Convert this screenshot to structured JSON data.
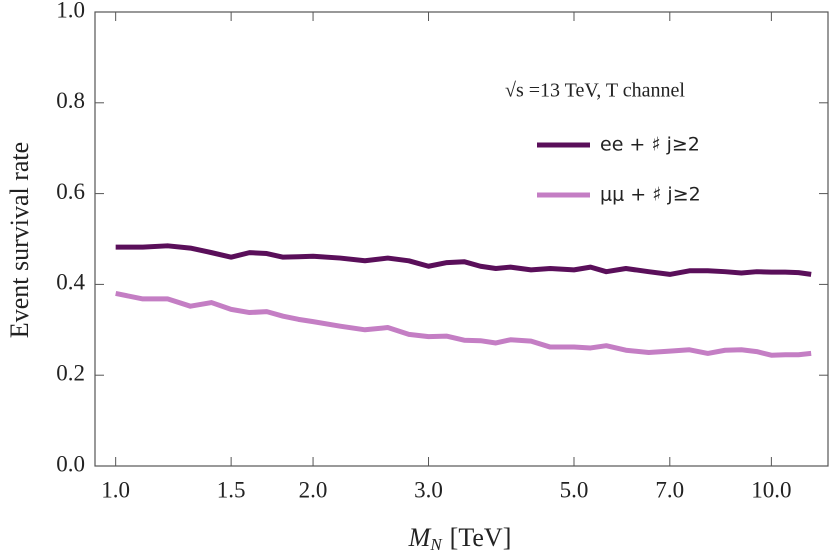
{
  "chart_data": {
    "type": "line",
    "ylabel": "Event survival rate",
    "xlabel": {
      "symbol": "M",
      "subscript": "N",
      "unit": "[TeV]"
    },
    "annotation": "√s =13 TeV, T channel",
    "x": [
      1.0,
      1.1,
      1.2,
      1.3,
      1.4,
      1.5,
      1.6,
      1.7,
      1.8,
      1.9,
      2.0,
      2.2,
      2.4,
      2.6,
      2.8,
      3.0,
      3.2,
      3.4,
      3.6,
      3.8,
      4.0,
      4.3,
      4.6,
      5.0,
      5.3,
      5.6,
      6.0,
      6.5,
      7.0,
      7.5,
      8.0,
      8.5,
      9.0,
      9.5,
      10.0,
      10.5,
      11.0,
      11.5
    ],
    "series": [
      {
        "name": "ee + ♯ j≥2",
        "color": "#5a0f5a",
        "values": [
          0.482,
          0.482,
          0.485,
          0.48,
          0.47,
          0.46,
          0.47,
          0.468,
          0.46,
          0.461,
          0.462,
          0.458,
          0.452,
          0.458,
          0.452,
          0.44,
          0.448,
          0.45,
          0.44,
          0.435,
          0.438,
          0.432,
          0.435,
          0.432,
          0.438,
          0.428,
          0.435,
          0.428,
          0.422,
          0.43,
          0.43,
          0.428,
          0.425,
          0.428,
          0.427,
          0.427,
          0.426,
          0.422
        ]
      },
      {
        "name": "μμ + ♯ j≥2",
        "color": "#c47ec4",
        "values": [
          0.38,
          0.368,
          0.368,
          0.352,
          0.36,
          0.345,
          0.338,
          0.34,
          0.33,
          0.323,
          0.318,
          0.308,
          0.3,
          0.305,
          0.29,
          0.285,
          0.286,
          0.277,
          0.276,
          0.271,
          0.278,
          0.275,
          0.262,
          0.262,
          0.26,
          0.265,
          0.255,
          0.25,
          0.253,
          0.256,
          0.248,
          0.255,
          0.256,
          0.252,
          0.244,
          0.245,
          0.245,
          0.248
        ]
      }
    ],
    "xscale": "log",
    "xlim": [
      0.93,
      12.2
    ],
    "xticks": [
      {
        "value": 1,
        "label": "1.0"
      },
      1.5,
      {
        "value": 2,
        "label": "2.0"
      },
      {
        "value": 3,
        "label": "3.0"
      },
      {
        "value": 5,
        "label": "5.0"
      },
      {
        "value": 7,
        "label": "7.0"
      },
      {
        "value": 10,
        "label": "10.0"
      }
    ],
    "ylim": [
      0,
      1
    ],
    "yticks": [
      {
        "value": 0,
        "label": "0.0"
      },
      0.2,
      0.4,
      0.6,
      0.8,
      {
        "value": 1,
        "label": "1.0"
      }
    ],
    "grid": false
  }
}
